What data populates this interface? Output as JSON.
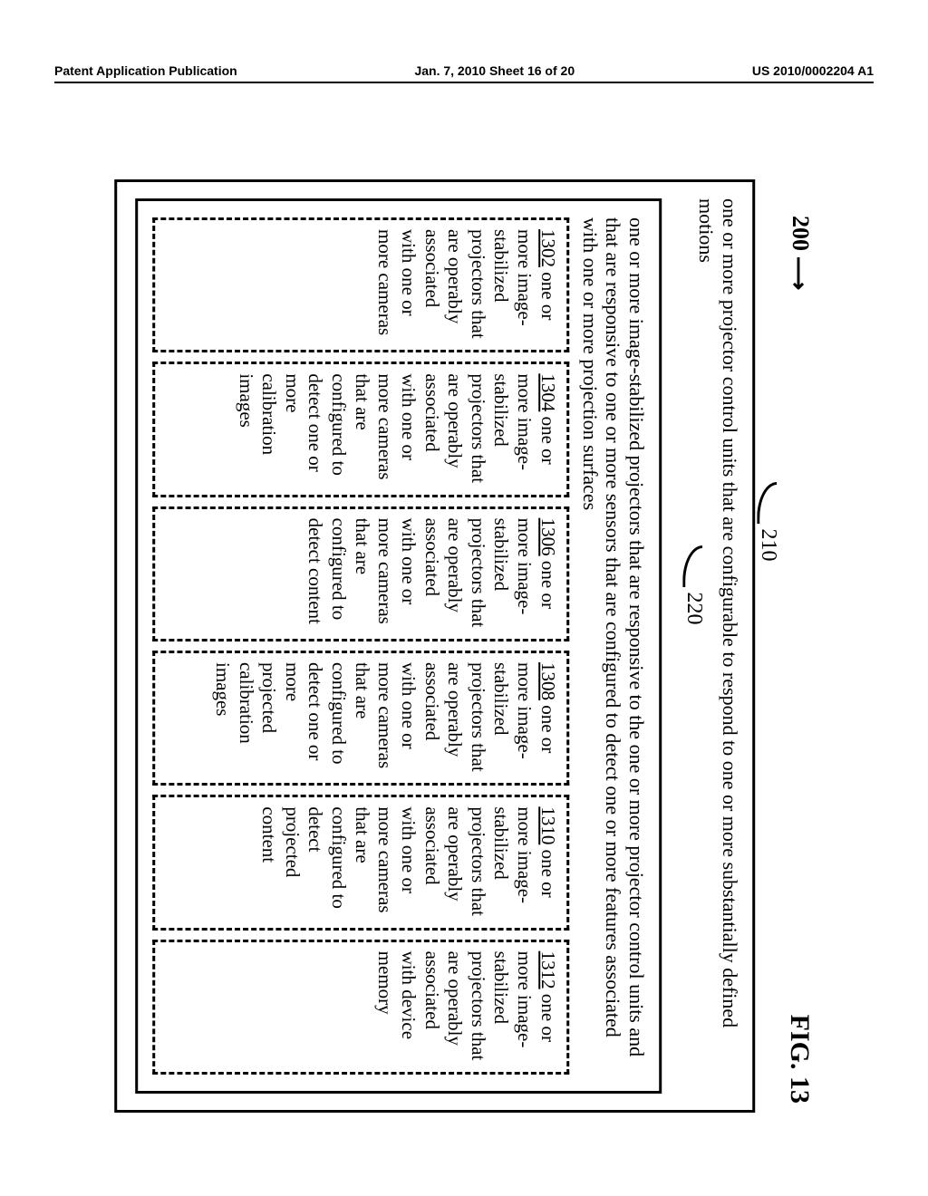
{
  "header": {
    "left": "Patent Application Publication",
    "center": "Jan. 7, 2010   Sheet 16 of 20",
    "right": "US 2010/0002204 A1"
  },
  "figure": {
    "label": "FIG. 13",
    "system_ref": "200",
    "outer_ref": "210",
    "outer_text": "one or more projector control units that are configurable to respond to one or more substantially defined motions",
    "inner_ref": "220",
    "inner_text": "one or more image-stabilized projectors that are responsive to the one or more projector control units and that are responsive to one or more sensors that are configured to detect one or more features associated with one or more projection surfaces",
    "boxes": [
      {
        "ref": "1302",
        "tail": "one or more image-stabilized projectors that are operably associated with one or more cameras"
      },
      {
        "ref": "1304",
        "tail": "one or more image-stabilized projectors that are operably associated with one or more cameras that are configured to detect one or more calibration images"
      },
      {
        "ref": "1306",
        "tail": "one or more image-stabilized projectors that are operably associated with one or more cameras that are configured to detect content"
      },
      {
        "ref": "1308",
        "tail": "one or more image-stabilized projectors that are operably associated with one or more cameras that are configured to detect one or more projected calibration images"
      },
      {
        "ref": "1310",
        "tail": "one or more image-stabilized projectors that are operably associated with one or more cameras that are configured to detect projected content"
      },
      {
        "ref": "1312",
        "tail": "one or more image-stabilized projectors that are operably associated with device memory"
      }
    ]
  }
}
